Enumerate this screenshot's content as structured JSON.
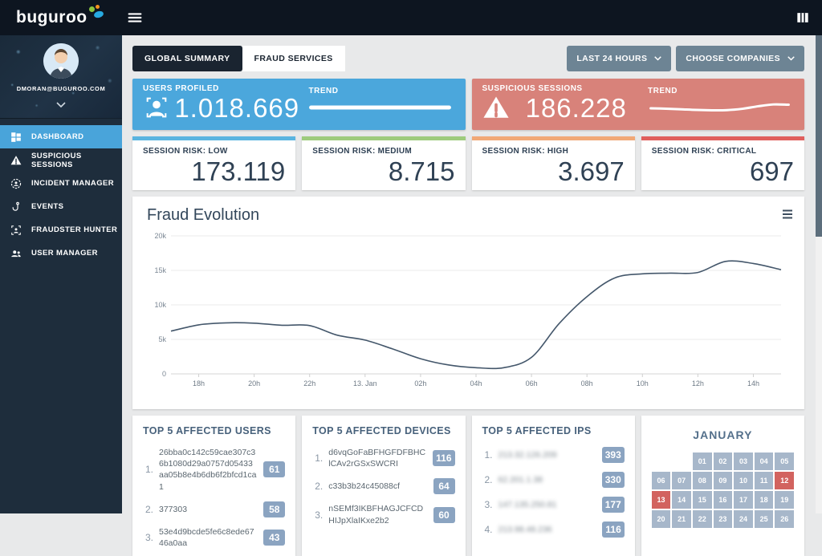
{
  "topbar": {
    "logo_text": "buguroo"
  },
  "sidebar": {
    "email": "DMORAN@BUGUROO.COM",
    "items": [
      {
        "label": "DASHBOARD",
        "icon": "grid-icon",
        "active": true
      },
      {
        "label": "SUSPICIOUS SESSIONS",
        "icon": "warning-icon",
        "active": false
      },
      {
        "label": "INCIDENT MANAGER",
        "icon": "incident-icon",
        "active": false
      },
      {
        "label": "EVENTS",
        "icon": "hook-icon",
        "active": false
      },
      {
        "label": "FRAUDSTER HUNTER",
        "icon": "fraudster-icon",
        "active": false
      },
      {
        "label": "USER MANAGER",
        "icon": "users-icon",
        "active": false
      }
    ]
  },
  "header": {
    "tabs": [
      {
        "label": "GLOBAL SUMMARY",
        "active": true
      },
      {
        "label": "FRAUD SERVICES",
        "active": false
      }
    ],
    "time_filter": "LAST 24 HOURS",
    "company_filter": "CHOOSE COMPANIES"
  },
  "stat_cards": [
    {
      "label": "USERS PROFILED",
      "value": "1.018.669",
      "trend_label": "TREND",
      "color": "#4ba7dc",
      "icon": "user-scan-icon",
      "spark": [
        0.5,
        0.5,
        0.5,
        0.5,
        0.5
      ]
    },
    {
      "label": "SUSPICIOUS SESSIONS",
      "value": "186.228",
      "trend_label": "TREND",
      "color": "#d8827a",
      "icon": "warning-icon",
      "spark": [
        0.45,
        0.42,
        0.38,
        0.34,
        0.32,
        0.33,
        0.42,
        0.58,
        0.7,
        0.68
      ]
    }
  ],
  "risk_cards": [
    {
      "label": "SESSION RISK: LOW",
      "value": "173.119",
      "accent": "#5ab4e0"
    },
    {
      "label": "SESSION RISK: MEDIUM",
      "value": "8.715",
      "accent": "#9ecb7d"
    },
    {
      "label": "SESSION RISK: HIGH",
      "value": "3.697",
      "accent": "#f1a877"
    },
    {
      "label": "SESSION RISK: CRITICAL",
      "value": "697",
      "accent": "#e05f5d"
    }
  ],
  "chart_data": {
    "type": "line",
    "title": "Fraud Evolution",
    "x_tick_labels": [
      "18h",
      "20h",
      "22h",
      "13. Jan",
      "02h",
      "04h",
      "06h",
      "08h",
      "10h",
      "12h",
      "14h"
    ],
    "x_tick_indices": [
      1,
      3,
      5,
      7,
      9,
      11,
      13,
      15,
      17,
      19,
      21
    ],
    "y_tick_labels": [
      "0",
      "5k",
      "10k",
      "15k",
      "20k"
    ],
    "y_tick_values": [
      0,
      5000,
      10000,
      15000,
      20000
    ],
    "ylim": [
      0,
      20000
    ],
    "values": [
      6200,
      7100,
      7400,
      7350,
      7050,
      7000,
      5600,
      4900,
      3600,
      2200,
      1300,
      900,
      900,
      2400,
      7300,
      11200,
      13900,
      14500,
      14600,
      14700,
      16300,
      16000,
      15100
    ],
    "line_color": "#44576b",
    "grid": true,
    "legend": false
  },
  "top_lists": {
    "users": {
      "title": "TOP 5 AFFECTED USERS",
      "items": [
        {
          "rank": "1.",
          "text": "26bba0c142c59cae307c36b1080d29a0757d05433aa05b8e4b6db6f2bfcd1ca1",
          "count": "61"
        },
        {
          "rank": "2.",
          "text": "377303",
          "count": "58"
        },
        {
          "rank": "3.",
          "text": "53e4d9bcde5fe6c8ede6746a0aa",
          "count": "43"
        }
      ]
    },
    "devices": {
      "title": "TOP 5 AFFECTED DEVICES",
      "items": [
        {
          "rank": "1.",
          "text": "d6vqGoFaBFHGFDFBHClCAv2rGSxSWCRI",
          "count": "116"
        },
        {
          "rank": "2.",
          "text": "c33b3b24c45088cf",
          "count": "64"
        },
        {
          "rank": "3.",
          "text": "nSEMf3IKBFHAGJCFCDHIJpXlaIKxe2b2",
          "count": "60"
        }
      ]
    },
    "ips": {
      "title": "TOP 5 AFFECTED IPS",
      "items": [
        {
          "rank": "1.",
          "text": "213.32.126.209",
          "count": "393",
          "blurred": true
        },
        {
          "rank": "2.",
          "text": "62.201.1.38",
          "count": "330",
          "blurred": true
        },
        {
          "rank": "3.",
          "text": "147.135.250.81",
          "count": "177",
          "blurred": true
        },
        {
          "rank": "4.",
          "text": "213.98.48.236",
          "count": "116",
          "blurred": true
        }
      ]
    }
  },
  "calendar": {
    "title": "JANUARY",
    "weeks": [
      [
        "",
        "",
        "01",
        "02",
        "03",
        "04",
        "05"
      ],
      [
        "06",
        "07",
        "08",
        "09",
        "10",
        "11",
        "12"
      ],
      [
        "13",
        "14",
        "15",
        "16",
        "17",
        "18",
        "19"
      ],
      [
        "20",
        "21",
        "22",
        "23",
        "24",
        "25",
        "26"
      ]
    ],
    "highlighted_days": [
      "12",
      "13"
    ],
    "cell_color": "#a7b7ca",
    "highlight_color": "#d2635f"
  }
}
